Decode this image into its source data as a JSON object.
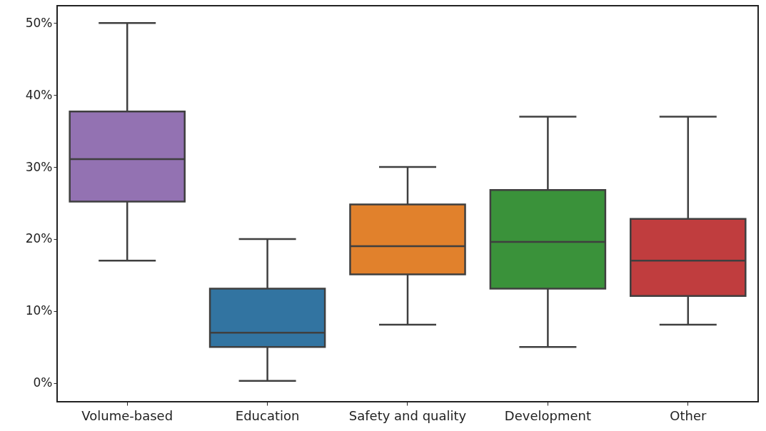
{
  "chart_data": {
    "type": "box",
    "categories": [
      "Volume-based",
      "Education",
      "Safety and quality",
      "Development",
      "Other"
    ],
    "colors": [
      "#9372b2",
      "#3274a1",
      "#e1812c",
      "#3a923a",
      "#c03d3e"
    ],
    "boxes": [
      {
        "low": 17,
        "q1": 25.2,
        "median": 31.1,
        "q3": 37.7,
        "high": 50
      },
      {
        "low": 0.3,
        "q1": 5,
        "median": 7,
        "q3": 13.1,
        "high": 20
      },
      {
        "low": 8.1,
        "q1": 15.1,
        "median": 19,
        "q3": 24.8,
        "high": 30
      },
      {
        "low": 5,
        "q1": 13.1,
        "median": 19.6,
        "q3": 26.8,
        "high": 37
      },
      {
        "low": 8.1,
        "q1": 12.1,
        "median": 17,
        "q3": 22.8,
        "high": 37
      }
    ],
    "ylim": [
      -2.6,
      52.4
    ],
    "yticks": [
      {
        "value": 0,
        "label": "0%"
      },
      {
        "value": 10,
        "label": "10%"
      },
      {
        "value": 20,
        "label": "20%"
      },
      {
        "value": 30,
        "label": "30%"
      },
      {
        "value": 40,
        "label": "40%"
      },
      {
        "value": 50,
        "label": "50%"
      }
    ]
  }
}
